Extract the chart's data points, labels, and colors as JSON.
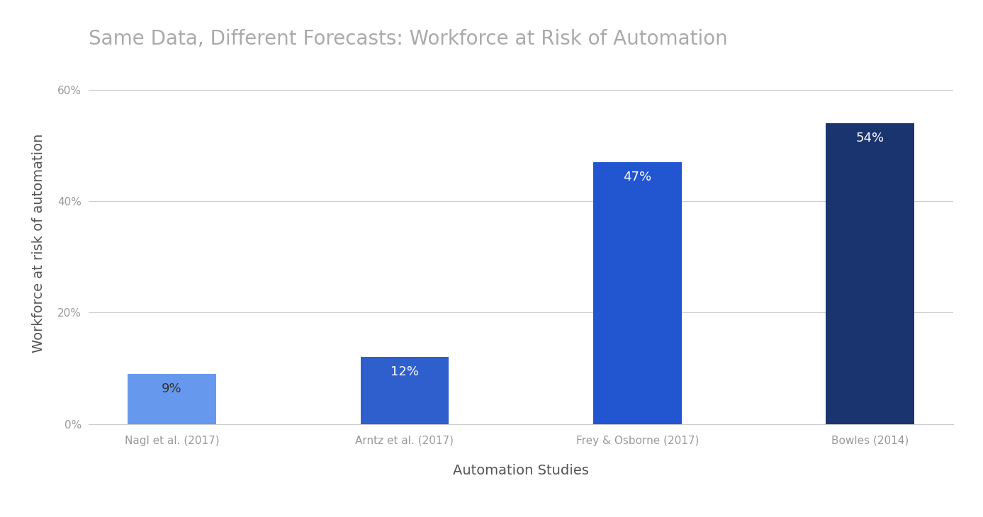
{
  "title": "Same Data, Different Forecasts: Workforce at Risk of Automation",
  "xlabel": "Automation Studies",
  "ylabel": "Workforce at risk of automation",
  "categories": [
    "Nagl et al. (2017)",
    "Arntz et al. (2017)",
    "Frey & Osborne (2017)",
    "Bowles (2014)"
  ],
  "values": [
    9,
    12,
    47,
    54
  ],
  "bar_colors": [
    "#6699ee",
    "#2f5fcc",
    "#2255d0",
    "#1a3470"
  ],
  "label_texts": [
    "9%",
    "12%",
    "47%",
    "54%"
  ],
  "label_colors": [
    "#333333",
    "#ffffff",
    "#ffffff",
    "#ffffff"
  ],
  "ylim": [
    0,
    65
  ],
  "yticks": [
    0,
    20,
    40,
    60
  ],
  "ytick_labels": [
    "0%",
    "20%",
    "40%",
    "60%"
  ],
  "background_color": "#ffffff",
  "title_fontsize": 20,
  "axis_label_fontsize": 14,
  "tick_label_fontsize": 11,
  "bar_label_fontsize": 13,
  "title_color": "#aaaaaa",
  "axis_label_color": "#555555",
  "tick_label_color": "#999999",
  "grid_color": "#cccccc",
  "bar_width": 0.38
}
